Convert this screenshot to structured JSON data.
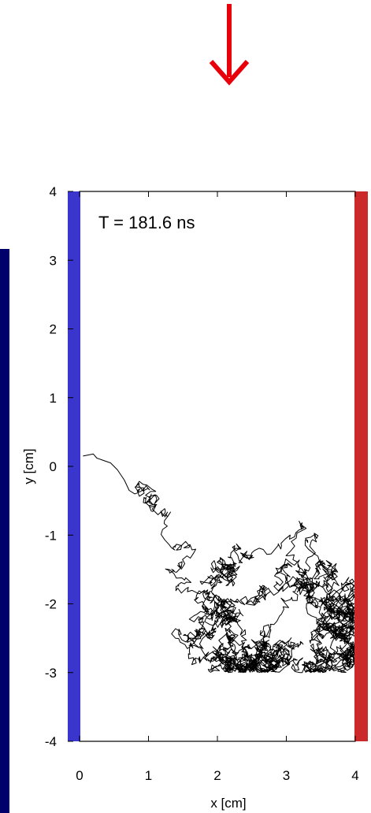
{
  "page": {
    "background": "#ffffff",
    "left_bar_color": "#00006b",
    "arrow_color": "#e8000b"
  },
  "chart_data": {
    "type": "line",
    "title": "",
    "xlabel": "x [cm]",
    "ylabel": "y [cm]",
    "xlim": [
      0,
      4
    ],
    "ylim": [
      -4,
      4
    ],
    "xticks": [
      0,
      1,
      2,
      3,
      4
    ],
    "yticks": [
      -4,
      -3,
      -2,
      -1,
      0,
      1,
      2,
      3,
      4
    ],
    "grid": false,
    "annotation": "T = 181.6 ns",
    "boundaries": [
      {
        "name": "",
        "x": 0,
        "color": "#3a35cc"
      },
      {
        "name": "",
        "x": 4,
        "color": "#cc2a2a"
      }
    ],
    "trajectory_color": "#000000",
    "trajectory_start": [
      0.05,
      0.15
    ],
    "trajectory_region": {
      "xmin": 0.8,
      "xmax": 4.0,
      "ymin": -3.0,
      "ymax": 1.6
    }
  }
}
